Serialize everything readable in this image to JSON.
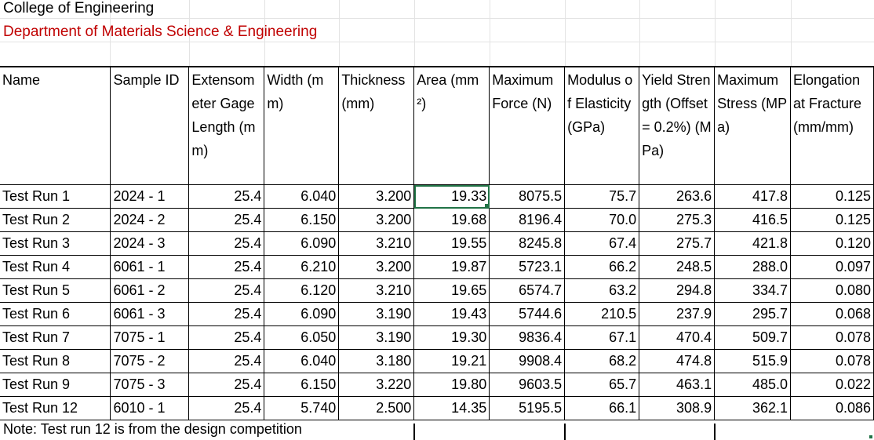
{
  "sheet": {
    "title_line1": "College of Engineering",
    "title_line2": "Department of Materials Science & Engineering",
    "note": "Note: Test run 12 is from the design competition",
    "selected_cell_value": "19.33",
    "colors": {
      "department_text": "#c00000",
      "selection": "#217346",
      "grid": "#e3e3e3"
    }
  },
  "table": {
    "headers": [
      "Name",
      "Sample ID",
      "Extensometer Gage Length (mm)",
      "Width (mm)",
      "Thickness (mm)",
      "Area (mm²)",
      "Maximum Force (N)",
      "Modulus of Elasticity (GPa)",
      "Yield Strength (Offset = 0.2%) (MPa)",
      "Maximum Stress (MPa)",
      "Elongation at Fracture (mm/mm)"
    ],
    "rows": [
      [
        "Test Run 1",
        "2024 - 1",
        "25.4",
        "6.040",
        "3.200",
        "19.33",
        "8075.5",
        "75.7",
        "263.6",
        "417.8",
        "0.125"
      ],
      [
        "Test Run 2",
        "2024 - 2",
        "25.4",
        "6.150",
        "3.200",
        "19.68",
        "8196.4",
        "70.0",
        "275.3",
        "416.5",
        "0.125"
      ],
      [
        "Test Run 3",
        "2024 - 3",
        "25.4",
        "6.090",
        "3.210",
        "19.55",
        "8245.8",
        "67.4",
        "275.7",
        "421.8",
        "0.120"
      ],
      [
        "Test Run 4",
        "6061 - 1",
        "25.4",
        "6.210",
        "3.200",
        "19.87",
        "5723.1",
        "66.2",
        "248.5",
        "288.0",
        "0.097"
      ],
      [
        "Test Run 5",
        "6061 - 2",
        "25.4",
        "6.120",
        "3.210",
        "19.65",
        "6574.7",
        "63.2",
        "294.8",
        "334.7",
        "0.080"
      ],
      [
        "Test Run 6",
        "6061 - 3",
        "25.4",
        "6.090",
        "3.190",
        "19.43",
        "5744.6",
        "210.5",
        "237.9",
        "295.7",
        "0.068"
      ],
      [
        "Test Run 7",
        "7075 - 1",
        "25.4",
        "6.050",
        "3.190",
        "19.30",
        "9836.4",
        "67.1",
        "470.4",
        "509.7",
        "0.078"
      ],
      [
        "Test Run 8",
        "7075 - 2",
        "25.4",
        "6.040",
        "3.180",
        "19.21",
        "9908.4",
        "68.2",
        "474.8",
        "515.9",
        "0.078"
      ],
      [
        "Test Run 9",
        "7075 - 3",
        "25.4",
        "6.150",
        "3.220",
        "19.80",
        "9603.5",
        "65.7",
        "463.1",
        "485.0",
        "0.022"
      ],
      [
        "Test Run 12",
        "6010 - 1",
        "25.4",
        "5.740",
        "2.500",
        "14.35",
        "5195.5",
        "66.1",
        "308.9",
        "362.1",
        "0.086"
      ]
    ]
  }
}
